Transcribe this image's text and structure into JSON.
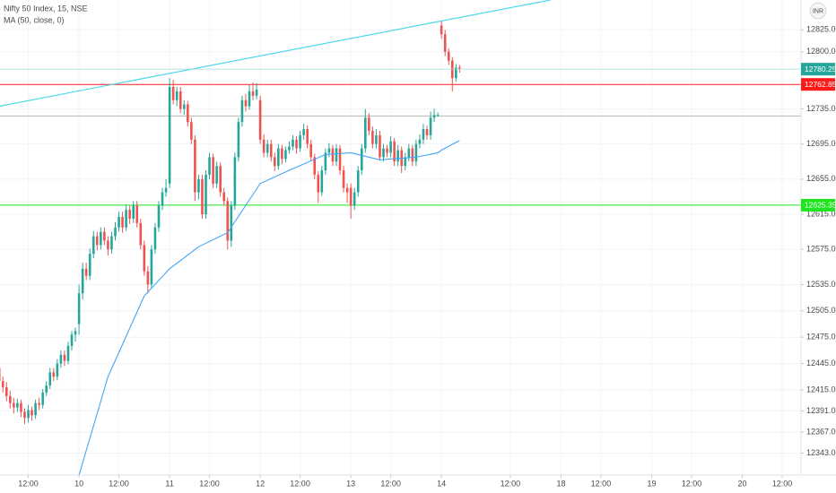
{
  "chart_data": {
    "type": "candlestick",
    "title": "Nifty 50 Index, 15, NSE",
    "currency": "INR",
    "up_color": "#26a69a",
    "down_color": "#ef5350",
    "grid": true,
    "ylim": [
      12318,
      12859
    ],
    "xlim": [
      0.2,
      221.2
    ],
    "yticks": [
      {
        "value": 12825,
        "label": "12825.00"
      },
      {
        "value": 12800,
        "label": "12800.00"
      },
      {
        "value": 12735,
        "label": "12735.00"
      },
      {
        "value": 12695,
        "label": "12695.00"
      },
      {
        "value": 12655,
        "label": "12655.00"
      },
      {
        "value": 12615,
        "label": "12615.00"
      },
      {
        "value": 12575,
        "label": "12575.00"
      },
      {
        "value": 12535,
        "label": "12535.00"
      },
      {
        "value": 12505,
        "label": "12505.00"
      },
      {
        "value": 12475,
        "label": "12475.00"
      },
      {
        "value": 12445,
        "label": "12445.00"
      },
      {
        "value": 12415,
        "label": "12415.00"
      },
      {
        "value": 12391,
        "label": "12391.00"
      },
      {
        "value": 12367,
        "label": "12367.00"
      },
      {
        "value": 12343,
        "label": "12343.00"
      }
    ],
    "xticks": [
      {
        "value": 8,
        "label": "12:00"
      },
      {
        "value": 22,
        "label": "10"
      },
      {
        "value": 33,
        "label": "12:00"
      },
      {
        "value": 47,
        "label": "11"
      },
      {
        "value": 58,
        "label": "12:00"
      },
      {
        "value": 72,
        "label": "12"
      },
      {
        "value": 83,
        "label": "12:00"
      },
      {
        "value": 97,
        "label": "13"
      },
      {
        "value": 108,
        "label": "12:00"
      },
      {
        "value": 122,
        "label": "14"
      },
      {
        "value": 141,
        "label": "12:00"
      },
      {
        "value": 155,
        "label": "18"
      },
      {
        "value": 166,
        "label": "12:00"
      },
      {
        "value": 180,
        "label": "19"
      },
      {
        "value": 191,
        "label": "12:00"
      },
      {
        "value": 205,
        "label": "20"
      },
      {
        "value": 216,
        "label": "12:00"
      }
    ],
    "candles": [
      [
        12440,
        12446,
        12420,
        12425
      ],
      [
        12425,
        12430,
        12412,
        12418
      ],
      [
        12418,
        12424,
        12402,
        12408
      ],
      [
        12408,
        12414,
        12394,
        12400
      ],
      [
        12400,
        12406,
        12388,
        12395
      ],
      [
        12395,
        12405,
        12390,
        12400
      ],
      [
        12400,
        12404,
        12384,
        12390
      ],
      [
        12390,
        12394,
        12376,
        12383
      ],
      [
        12383,
        12398,
        12378,
        12392
      ],
      [
        12392,
        12396,
        12380,
        12386
      ],
      [
        12386,
        12404,
        12382,
        12400
      ],
      [
        12400,
        12406,
        12392,
        12398
      ],
      [
        12398,
        12416,
        12394,
        12412
      ],
      [
        12412,
        12425,
        12408,
        12420
      ],
      [
        12420,
        12440,
        12416,
        12435
      ],
      [
        12435,
        12440,
        12425,
        12430
      ],
      [
        12430,
        12450,
        12426,
        12445
      ],
      [
        12445,
        12460,
        12440,
        12455
      ],
      [
        12455,
        12460,
        12442,
        12448
      ],
      [
        12448,
        12470,
        12444,
        12465
      ],
      [
        12465,
        12482,
        12460,
        12478
      ],
      [
        12478,
        12486,
        12470,
        12482
      ],
      [
        12490,
        12535,
        12478,
        12525
      ],
      [
        12525,
        12560,
        12518,
        12553
      ],
      [
        12553,
        12560,
        12540,
        12545
      ],
      [
        12545,
        12576,
        12540,
        12570
      ],
      [
        12570,
        12596,
        12565,
        12590
      ],
      [
        12590,
        12595,
        12574,
        12580
      ],
      [
        12580,
        12600,
        12575,
        12595
      ],
      [
        12595,
        12600,
        12580,
        12585
      ],
      [
        12585,
        12590,
        12568,
        12575
      ],
      [
        12575,
        12595,
        12570,
        12590
      ],
      [
        12590,
        12606,
        12585,
        12600
      ],
      [
        12600,
        12618,
        12595,
        12612
      ],
      [
        12612,
        12618,
        12594,
        12600
      ],
      [
        12600,
        12626,
        12596,
        12620
      ],
      [
        12620,
        12625,
        12604,
        12610
      ],
      [
        12610,
        12630,
        12605,
        12625
      ],
      [
        12625,
        12630,
        12600,
        12605
      ],
      [
        12605,
        12610,
        12575,
        12580
      ],
      [
        12580,
        12585,
        12545,
        12550
      ],
      [
        12550,
        12556,
        12525,
        12535
      ],
      [
        12535,
        12580,
        12530,
        12575
      ],
      [
        12575,
        12605,
        12570,
        12600
      ],
      [
        12600,
        12630,
        12595,
        12625
      ],
      [
        12625,
        12645,
        12620,
        12640
      ],
      [
        12640,
        12655,
        12635,
        12645
      ],
      [
        12650,
        12770,
        12645,
        12760
      ],
      [
        12760,
        12768,
        12740,
        12745
      ],
      [
        12745,
        12760,
        12738,
        12755
      ],
      [
        12755,
        12760,
        12730,
        12735
      ],
      [
        12735,
        12745,
        12728,
        12740
      ],
      [
        12740,
        12744,
        12715,
        12720
      ],
      [
        12720,
        12725,
        12695,
        12700
      ],
      [
        12700,
        12705,
        12630,
        12640
      ],
      [
        12640,
        12660,
        12632,
        12655
      ],
      [
        12655,
        12660,
        12610,
        12615
      ],
      [
        12615,
        12665,
        12610,
        12660
      ],
      [
        12660,
        12685,
        12655,
        12680
      ],
      [
        12680,
        12684,
        12645,
        12650
      ],
      [
        12650,
        12675,
        12645,
        12670
      ],
      [
        12670,
        12674,
        12635,
        12640
      ],
      [
        12640,
        12645,
        12625,
        12630
      ],
      [
        12630,
        12634,
        12575,
        12585
      ],
      [
        12585,
        12630,
        12578,
        12625
      ],
      [
        12625,
        12685,
        12620,
        12680
      ],
      [
        12680,
        12725,
        12675,
        12720
      ],
      [
        12720,
        12750,
        12715,
        12745
      ],
      [
        12745,
        12752,
        12732,
        12738
      ],
      [
        12738,
        12762,
        12734,
        12755
      ],
      [
        12755,
        12765,
        12745,
        12750
      ],
      [
        12750,
        12764,
        12746,
        12757
      ],
      [
        12745,
        12750,
        12695,
        12700
      ],
      [
        12700,
        12706,
        12680,
        12685
      ],
      [
        12685,
        12700,
        12680,
        12695
      ],
      [
        12695,
        12700,
        12675,
        12680
      ],
      [
        12680,
        12685,
        12664,
        12670
      ],
      [
        12670,
        12695,
        12666,
        12690
      ],
      [
        12690,
        12694,
        12672,
        12678
      ],
      [
        12678,
        12692,
        12674,
        12688
      ],
      [
        12688,
        12698,
        12684,
        12692
      ],
      [
        12692,
        12705,
        12688,
        12700
      ],
      [
        12700,
        12704,
        12684,
        12690
      ],
      [
        12690,
        12710,
        12686,
        12705
      ],
      [
        12705,
        12718,
        12700,
        12712
      ],
      [
        12712,
        12716,
        12690,
        12695
      ],
      [
        12695,
        12700,
        12676,
        12680
      ],
      [
        12680,
        12684,
        12655,
        12660
      ],
      [
        12660,
        12664,
        12628,
        12640
      ],
      [
        12640,
        12670,
        12636,
        12665
      ],
      [
        12665,
        12690,
        12660,
        12685
      ],
      [
        12685,
        12696,
        12680,
        12690
      ],
      [
        12690,
        12694,
        12670,
        12675
      ],
      [
        12675,
        12695,
        12670,
        12690
      ],
      [
        12690,
        12694,
        12660,
        12665
      ],
      [
        12665,
        12670,
        12640,
        12645
      ],
      [
        12645,
        12650,
        12628,
        12640
      ],
      [
        12645,
        12650,
        12610,
        12625
      ],
      [
        12625,
        12645,
        12620,
        12640
      ],
      [
        12640,
        12670,
        12635,
        12665
      ],
      [
        12665,
        12695,
        12660,
        12690
      ],
      [
        12690,
        12735,
        12685,
        12725
      ],
      [
        12725,
        12730,
        12705,
        12710
      ],
      [
        12710,
        12715,
        12690,
        12695
      ],
      [
        12695,
        12712,
        12690,
        12705
      ],
      [
        12705,
        12710,
        12676,
        12680
      ],
      [
        12680,
        12695,
        12675,
        12690
      ],
      [
        12690,
        12694,
        12680,
        12685
      ],
      [
        12685,
        12704,
        12680,
        12698
      ],
      [
        12698,
        12702,
        12670,
        12675
      ],
      [
        12675,
        12694,
        12670,
        12688
      ],
      [
        12688,
        12692,
        12662,
        12670
      ],
      [
        12670,
        12685,
        12665,
        12680
      ],
      [
        12680,
        12695,
        12675,
        12690
      ],
      [
        12690,
        12694,
        12670,
        12675
      ],
      [
        12675,
        12700,
        12670,
        12695
      ],
      [
        12695,
        12706,
        12690,
        12700
      ],
      [
        12700,
        12718,
        12695,
        12712
      ],
      [
        12712,
        12716,
        12700,
        12705
      ],
      [
        12705,
        12732,
        12700,
        12725
      ],
      [
        12725,
        12735,
        12720,
        12728
      ],
      [
        12728,
        12731,
        12726,
        12728
      ],
      [
        12830,
        12835,
        12815,
        12820
      ],
      [
        12820,
        12825,
        12795,
        12800
      ],
      [
        12800,
        12804,
        12785,
        12790
      ],
      [
        12790,
        12794,
        12755,
        12770
      ],
      [
        12770,
        12786,
        12766,
        12782
      ],
      [
        12782,
        12785,
        12776,
        12780.25
      ]
    ],
    "series": [
      {
        "name": "MA (50, close, 0)",
        "color": "#42a5f5",
        "x": [
          22,
          30,
          40,
          47,
          55,
          63,
          72,
          80,
          90,
          97,
          105,
          115,
          121,
          122,
          127
        ],
        "values": [
          12318,
          12430,
          12522,
          12553,
          12578,
          12594,
          12650,
          12665,
          12683,
          12685,
          12677,
          12680,
          12685,
          12688,
          12699
        ]
      }
    ],
    "trendline": {
      "color": "#4dd9ec",
      "x": [
        0,
        152
      ],
      "values": [
        12738,
        12859
      ]
    },
    "horizontal_lines": [
      {
        "value": 12762.85,
        "color": "#ff1a1a"
      },
      {
        "value": 12625.35,
        "color": "#1ee61e"
      },
      {
        "value": 12727,
        "color": "#b8b8b8"
      }
    ],
    "last_price_color": "#26a69a"
  }
}
